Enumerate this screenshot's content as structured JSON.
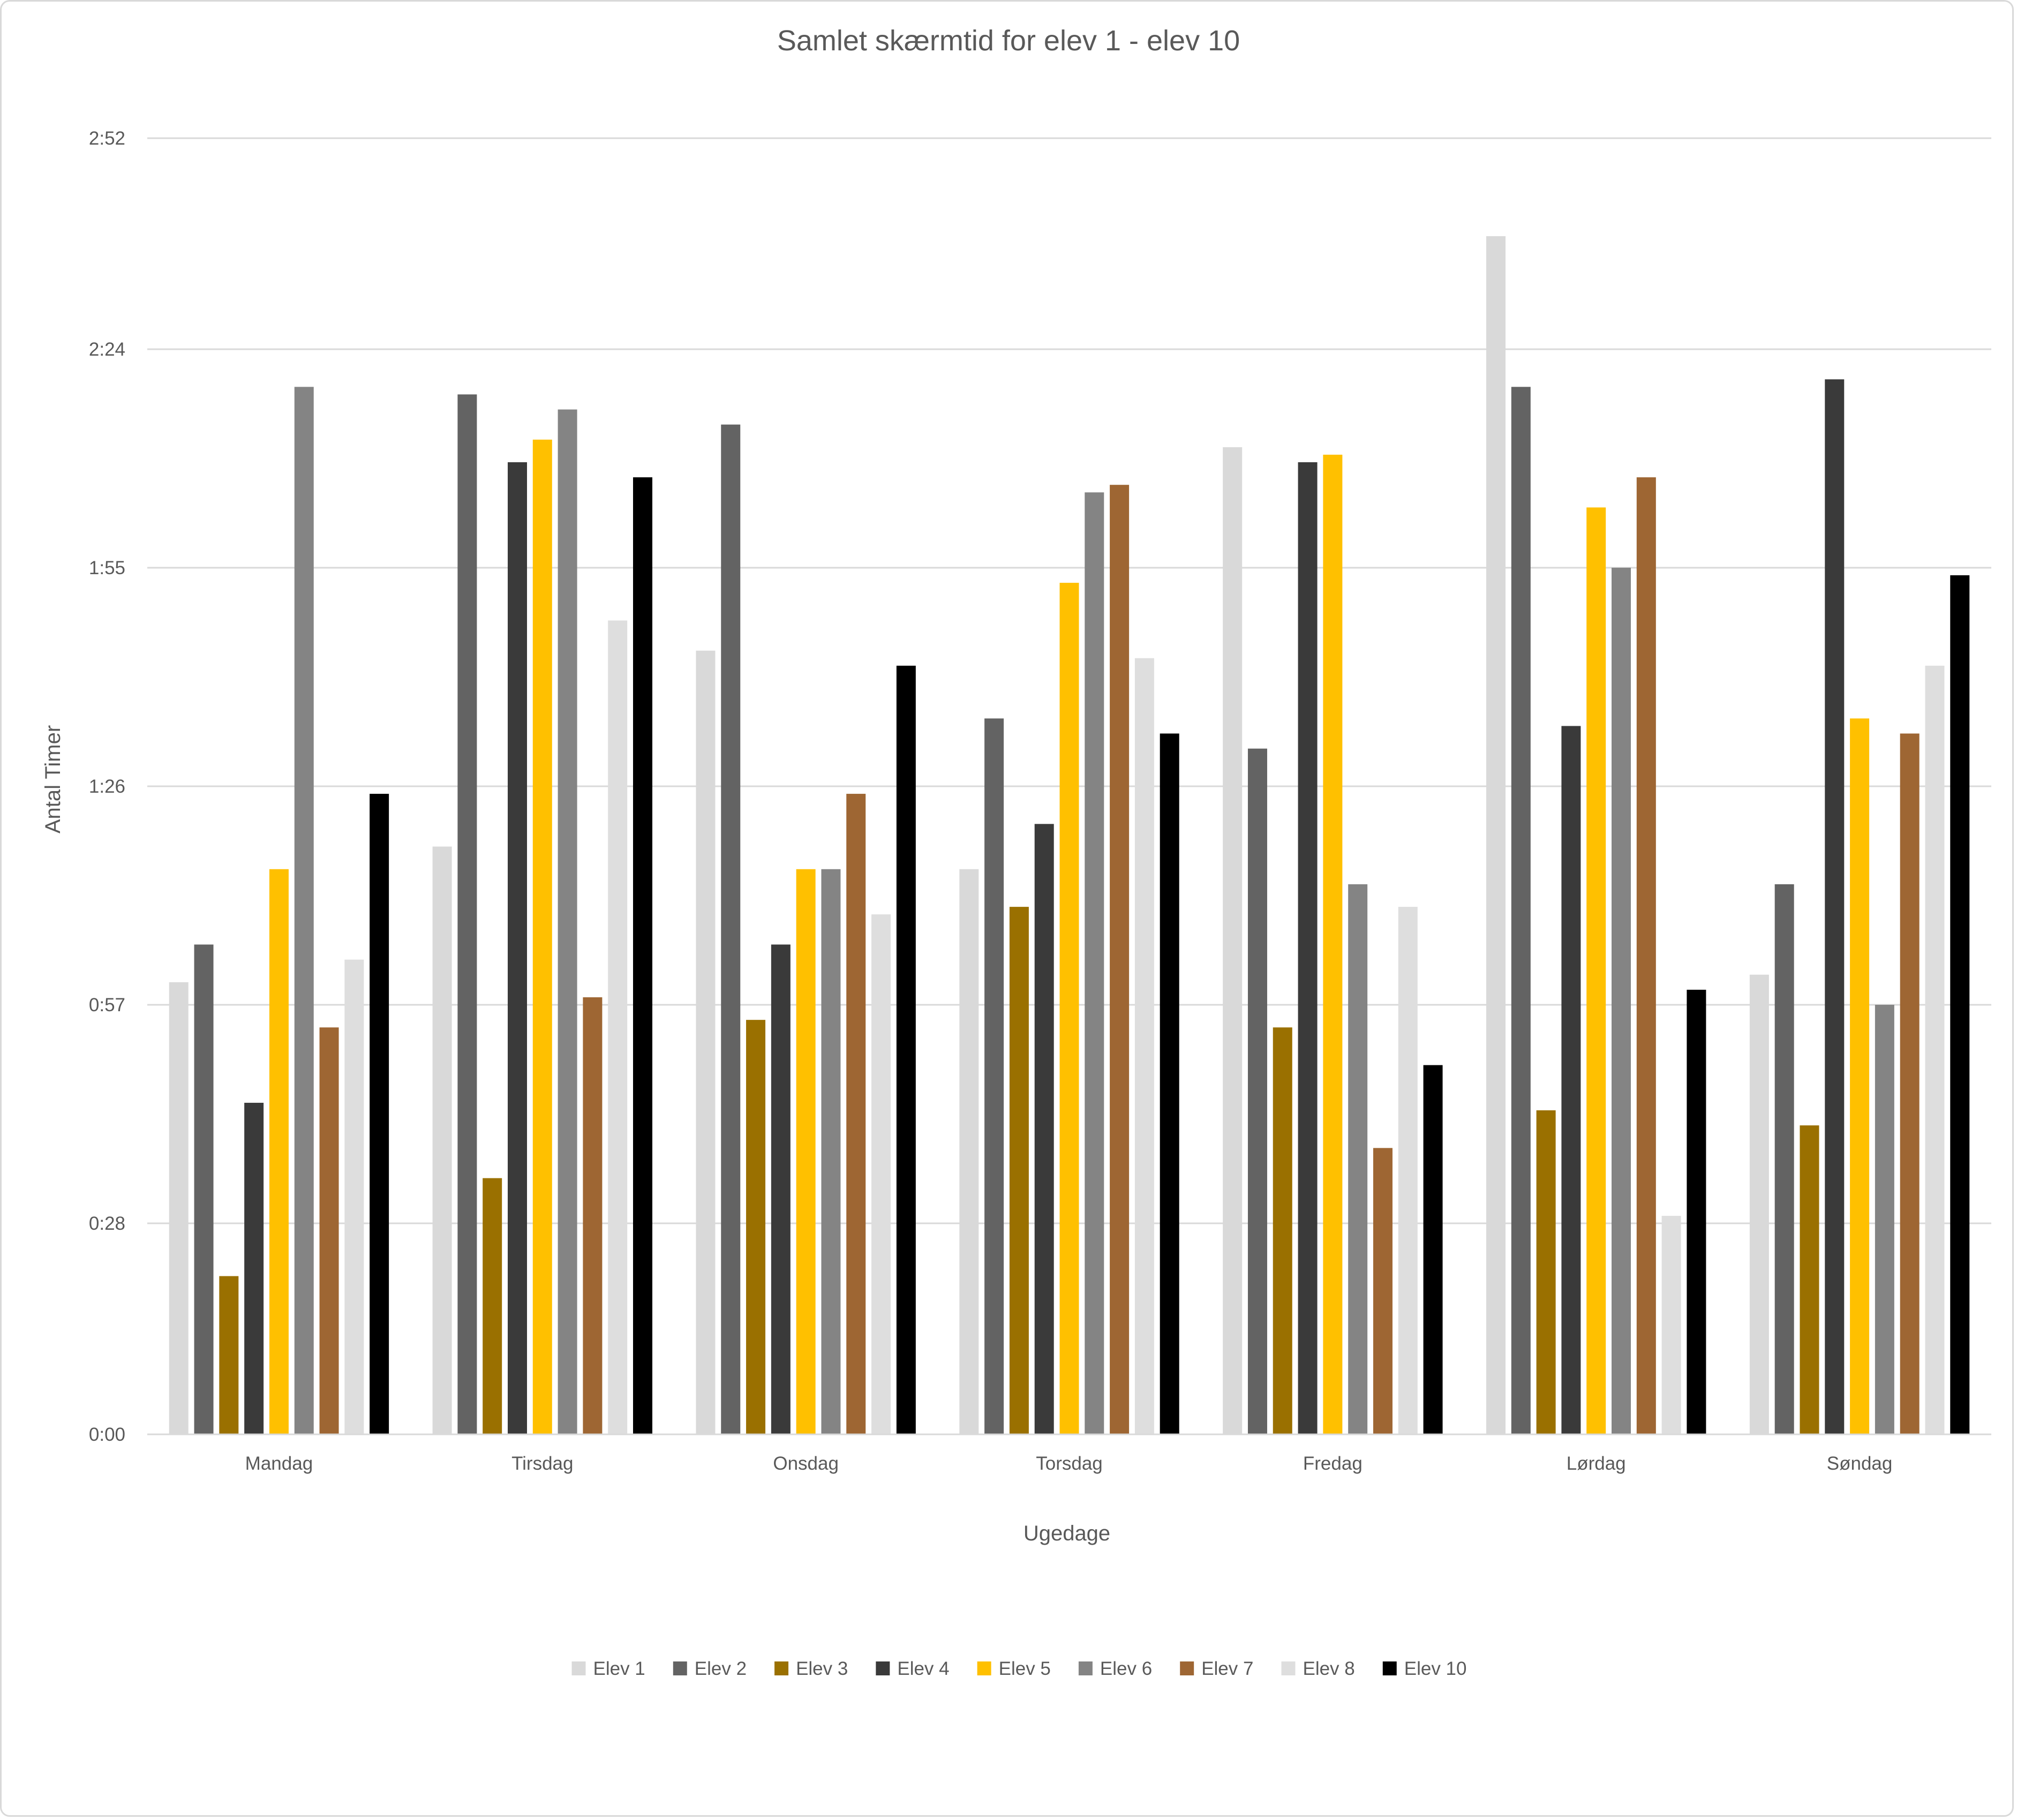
{
  "chart_data": {
    "type": "bar",
    "title": "Samlet skærmtid for elev 1 - elev 10",
    "xlabel": "Ugedage",
    "ylabel": "Antal Timer",
    "y_unit": "minutes",
    "ylim": [
      0,
      172
    ],
    "y_ticks": [
      0,
      28,
      57,
      86,
      115,
      144,
      172
    ],
    "y_tick_labels": [
      "0:00",
      "0:28",
      "0:57",
      "1:26",
      "1:55",
      "2:24",
      "2:52"
    ],
    "grid": true,
    "legend_position": "bottom",
    "categories": [
      "Mandag",
      "Tirsdag",
      "Onsdag",
      "Torsdag",
      "Fredag",
      "Lørdag",
      "Søndag"
    ],
    "series": [
      {
        "name": "Elev 1",
        "color": "#d9d9d9",
        "values": [
          60,
          78,
          104,
          75,
          131,
          159,
          61
        ]
      },
      {
        "name": "Elev 2",
        "color": "#636363",
        "values": [
          65,
          138,
          134,
          95,
          91,
          139,
          73
        ]
      },
      {
        "name": "Elev 3",
        "color": "#9a7000",
        "values": [
          21,
          34,
          55,
          70,
          54,
          43,
          41
        ]
      },
      {
        "name": "Elev 4",
        "color": "#3a3a3a",
        "values": [
          44,
          129,
          65,
          81,
          129,
          94,
          140
        ]
      },
      {
        "name": "Elev 5",
        "color": "#ffc000",
        "values": [
          75,
          132,
          75,
          113,
          130,
          123,
          95
        ]
      },
      {
        "name": "Elev 6",
        "color": "#848484",
        "values": [
          139,
          136,
          75,
          125,
          73,
          115,
          57
        ]
      },
      {
        "name": "Elev 7",
        "color": "#9e6633",
        "values": [
          54,
          58,
          85,
          126,
          38,
          127,
          93
        ]
      },
      {
        "name": "Elev 8",
        "color": "#dedede",
        "values": [
          63,
          108,
          69,
          103,
          70,
          29,
          102
        ]
      },
      {
        "name": "Elev 10",
        "color": "#000000",
        "values": [
          85,
          127,
          102,
          93,
          49,
          59,
          114
        ]
      }
    ]
  }
}
